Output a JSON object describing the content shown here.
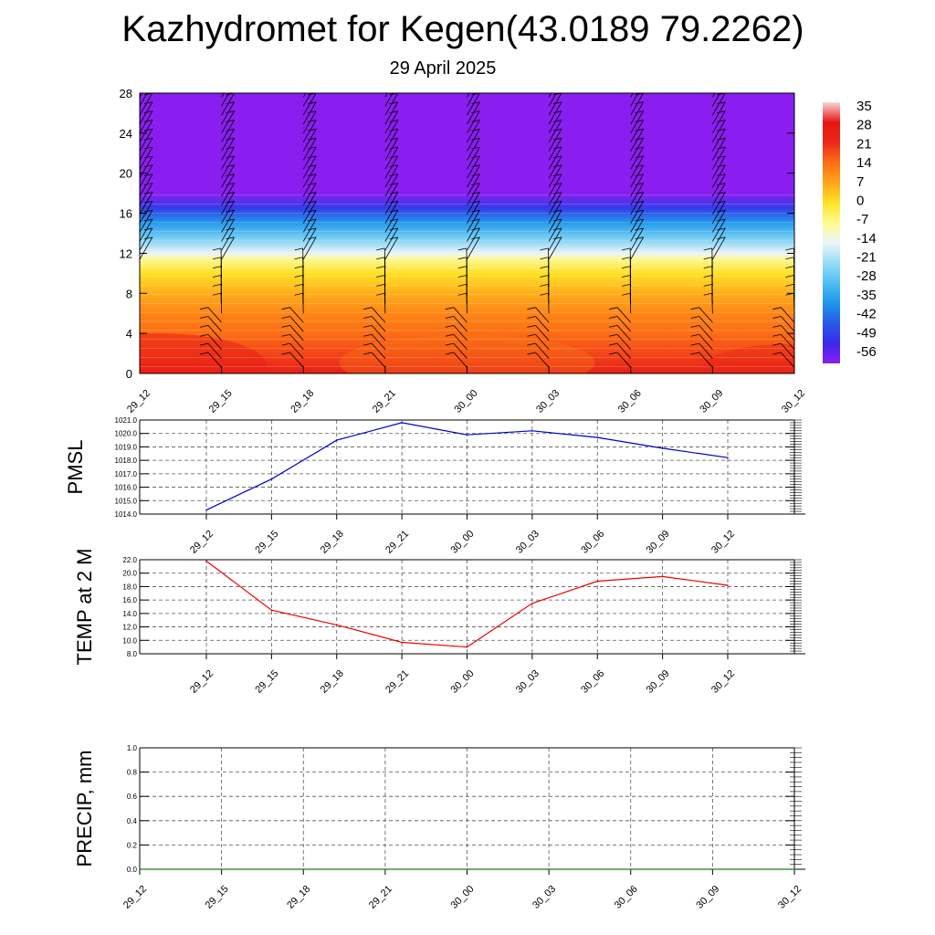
{
  "title": "Kazhydromet for Kegen(43.0189 79.2262)",
  "subtitle": "29 April 2025",
  "colors": {
    "pmsl_line": "#0000cc",
    "temp_line": "#ee0000",
    "precip_line": "#1a7a1a",
    "grid": "#555555",
    "contour_top": "#8b1ef0"
  },
  "chart_data": [
    {
      "type": "heatmap",
      "title": "",
      "xlabel": "",
      "ylabel": "",
      "x": [
        "29_12",
        "29_15",
        "29_18",
        "29_21",
        "30_00",
        "30_03",
        "30_06",
        "30_09",
        "30_12"
      ],
      "yticks": [
        "0",
        "4",
        "8",
        "12",
        "16",
        "20",
        "24",
        "28"
      ],
      "ylim": [
        0,
        28
      ],
      "colorbar": {
        "labels": [
          "35",
          "28",
          "21",
          "14",
          "7",
          "0",
          "-7",
          "-14",
          "-21",
          "-28",
          "-35",
          "-42",
          "-49",
          "-56"
        ],
        "range": [
          -56,
          35
        ]
      },
      "profile": [
        {
          "h": 0,
          "t": 25
        },
        {
          "h": 2,
          "t": 18
        },
        {
          "h": 4,
          "t": 14
        },
        {
          "h": 6,
          "t": 11
        },
        {
          "h": 8,
          "t": 6
        },
        {
          "h": 10,
          "t": 0
        },
        {
          "h": 11.5,
          "t": -8
        },
        {
          "h": 12,
          "t": -14
        },
        {
          "h": 13.5,
          "t": -24
        },
        {
          "h": 15,
          "t": -34
        },
        {
          "h": 16.5,
          "t": -46
        },
        {
          "h": 18,
          "t": -56
        },
        {
          "h": 28,
          "t": -56
        }
      ],
      "wind_barbs": "on",
      "grid": false
    },
    {
      "type": "line",
      "ylabel": "PMSL",
      "x": [
        "29_12",
        "29_15",
        "29_18",
        "29_21",
        "30_00",
        "30_03",
        "30_06",
        "30_09",
        "30_12"
      ],
      "values": [
        1014.3,
        1016.6,
        1019.5,
        1020.8,
        1019.9,
        1020.2,
        1019.7,
        1018.9,
        1018.2
      ],
      "yticks": [
        "1014.0",
        "1015.0",
        "1016.0",
        "1017.0",
        "1018.0",
        "1019.0",
        "1020.0",
        "1021.0"
      ],
      "ylim": [
        1014,
        1021
      ],
      "grid": true
    },
    {
      "type": "line",
      "ylabel": "TEMP at 2 M",
      "x": [
        "29_12",
        "29_15",
        "29_18",
        "29_21",
        "30_00",
        "30_03",
        "30_06",
        "30_09",
        "30_12"
      ],
      "values": [
        21.8,
        14.5,
        12.3,
        9.7,
        9.0,
        15.5,
        18.8,
        19.5,
        18.2
      ],
      "yticks": [
        "8.0",
        "10.0",
        "12.0",
        "14.0",
        "16.0",
        "18.0",
        "20.0",
        "22.0"
      ],
      "ylim": [
        8,
        22
      ],
      "grid": true
    },
    {
      "type": "line",
      "ylabel": "PRECIP, mm",
      "x": [
        "29_12",
        "29_15",
        "29_18",
        "29_21",
        "30_00",
        "30_03",
        "30_06",
        "30_09",
        "30_12"
      ],
      "values": [
        0,
        0,
        0,
        0,
        0,
        0,
        0,
        0,
        0
      ],
      "yticks": [
        "0.0",
        "0.2",
        "0.4",
        "0.6",
        "0.8",
        "1.0"
      ],
      "ylim": [
        0,
        1
      ],
      "grid": true
    }
  ]
}
